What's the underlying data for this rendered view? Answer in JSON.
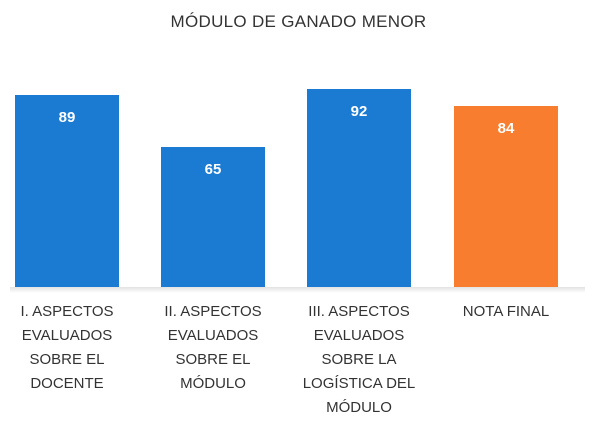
{
  "chart_data": {
    "type": "bar",
    "title": "MÓDULO DE GANADO MENOR",
    "categories": [
      "I. ASPECTOS EVALUADOS SOBRE EL DOCENTE",
      "II. ASPECTOS EVALUADOS SOBRE EL MÓDULO",
      "III. ASPECTOS EVALUADOS SOBRE LA LOGÍSTICA DEL MÓDULO",
      "NOTA FINAL"
    ],
    "values": [
      89,
      65,
      92,
      84
    ],
    "colors": [
      "#1b7bd3",
      "#1b7bd3",
      "#1b7bd3",
      "#f87d2e"
    ]
  }
}
